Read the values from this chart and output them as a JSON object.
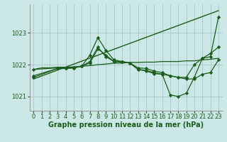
{
  "background_color": "#cce8e6",
  "grid_color": "#aaccca",
  "line_color": "#1a5c1a",
  "marker_color": "#1a5c1a",
  "xlabel": "Graphe pression niveau de la mer (hPa)",
  "xlabel_fontsize": 7,
  "tick_fontsize": 6,
  "ylim": [
    1020.55,
    1023.9
  ],
  "xlim": [
    -0.5,
    23.5
  ],
  "yticks": [
    1021,
    1022,
    1023
  ],
  "xticks": [
    0,
    1,
    2,
    3,
    4,
    5,
    6,
    7,
    8,
    9,
    10,
    11,
    12,
    13,
    14,
    15,
    16,
    17,
    18,
    19,
    20,
    21,
    22,
    23
  ],
  "series": [
    {
      "x": [
        0,
        1,
        2,
        3,
        4,
        5,
        6,
        7,
        8,
        9,
        10,
        11,
        12,
        13,
        14,
        15,
        16,
        17,
        18,
        19,
        20,
        21,
        22,
        23
      ],
      "y": [
        1021.85,
        1021.9,
        1021.9,
        1021.92,
        1021.92,
        1021.93,
        1021.95,
        1021.97,
        1022.0,
        1022.02,
        1022.05,
        1022.05,
        1022.07,
        1022.07,
        1022.08,
        1022.08,
        1022.1,
        1022.1,
        1022.1,
        1022.12,
        1022.12,
        1022.15,
        1022.17,
        1022.2
      ],
      "marker": null,
      "markersize": 0,
      "linewidth": 0.9
    },
    {
      "x": [
        0,
        23
      ],
      "y": [
        1021.55,
        1023.7
      ],
      "marker": null,
      "markersize": 0,
      "linewidth": 1.0
    },
    {
      "x": [
        0,
        3,
        4,
        5,
        6,
        7,
        8,
        9,
        10,
        11,
        12,
        13,
        14,
        15,
        16,
        17,
        18,
        19,
        20,
        21,
        22,
        23
      ],
      "y": [
        1021.85,
        1021.9,
        1021.9,
        1021.92,
        1021.95,
        1022.1,
        1022.55,
        1022.25,
        1022.1,
        1022.1,
        1022.05,
        1021.9,
        1021.88,
        1021.8,
        1021.75,
        1021.65,
        1021.6,
        1021.55,
        1021.55,
        1021.7,
        1021.75,
        1022.15
      ],
      "marker": "D",
      "markersize": 2.2,
      "linewidth": 0.9
    },
    {
      "x": [
        0,
        3,
        4,
        5,
        6,
        7,
        8,
        9,
        10,
        11,
        12,
        13,
        14,
        15,
        16,
        17,
        18,
        19,
        20,
        21,
        22,
        23
      ],
      "y": [
        1021.65,
        1021.88,
        1021.88,
        1021.9,
        1021.95,
        1022.3,
        1022.85,
        1022.45,
        1022.15,
        1022.1,
        1022.05,
        1021.85,
        1021.82,
        1021.75,
        1021.7,
        1021.05,
        1021.0,
        1021.1,
        1021.6,
        1022.2,
        1022.25,
        1023.5
      ],
      "marker": "D",
      "markersize": 2.2,
      "linewidth": 0.9
    },
    {
      "x": [
        0,
        3,
        4,
        5,
        6,
        7,
        8,
        9,
        10,
        11,
        12,
        13,
        14,
        15,
        16,
        17,
        18,
        19,
        20,
        21,
        22,
        23
      ],
      "y": [
        1021.6,
        1021.88,
        1021.88,
        1021.9,
        1021.95,
        1022.05,
        1022.5,
        1022.3,
        1022.1,
        1022.08,
        1022.05,
        1021.85,
        1021.8,
        1021.72,
        1021.7,
        1021.65,
        1021.6,
        1021.6,
        1022.0,
        1022.2,
        1022.35,
        1022.55
      ],
      "marker": "D",
      "markersize": 2.2,
      "linewidth": 0.9
    }
  ]
}
